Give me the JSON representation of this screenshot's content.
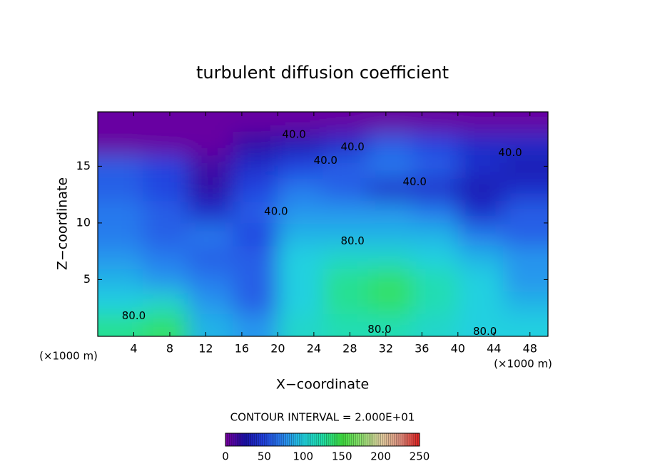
{
  "chart_data": {
    "type": "contour",
    "title": "turbulent diffusion coefficient",
    "xlabel": "X−coordinate",
    "ylabel": "Z−coordinate",
    "x_unit_label": "(×1000 m)",
    "x_unit_label_right": "(×1000 m)",
    "contour_interval_label": "CONTOUR INTERVAL = 2.000E+01",
    "xlim": [
      0,
      50
    ],
    "ylim": [
      0,
      19.8
    ],
    "xticks": [
      4,
      8,
      12,
      16,
      20,
      24,
      28,
      32,
      36,
      40,
      44,
      48
    ],
    "yticks": [
      5,
      10,
      15
    ],
    "grid_x": [
      2.5,
      7.5,
      12.5,
      17.5,
      22.5,
      27.5,
      32.5,
      37.5,
      42.5,
      47.5
    ],
    "grid_z": [
      1,
      3,
      5,
      7,
      9,
      11,
      13,
      15,
      17,
      19
    ],
    "values": [
      [
        130,
        140,
        90,
        80,
        110,
        120,
        120,
        110,
        100,
        100
      ],
      [
        100,
        110,
        80,
        60,
        100,
        130,
        140,
        120,
        100,
        90
      ],
      [
        90,
        80,
        70,
        60,
        100,
        130,
        140,
        120,
        100,
        80
      ],
      [
        80,
        70,
        60,
        60,
        100,
        110,
        110,
        100,
        90,
        80
      ],
      [
        70,
        60,
        70,
        50,
        90,
        90,
        90,
        90,
        70,
        60
      ],
      [
        70,
        60,
        40,
        60,
        80,
        80,
        80,
        70,
        40,
        60
      ],
      [
        60,
        50,
        20,
        50,
        70,
        60,
        40,
        40,
        30,
        40
      ],
      [
        60,
        50,
        15,
        40,
        50,
        60,
        70,
        60,
        40,
        30
      ],
      [
        5,
        5,
        5,
        20,
        30,
        40,
        60,
        50,
        40,
        40
      ],
      [
        5,
        5,
        5,
        5,
        5,
        5,
        5,
        5,
        5,
        5
      ]
    ],
    "contour_labels": [
      {
        "value": 40,
        "label": "40.0",
        "x": 21.8,
        "y": 17.8
      },
      {
        "value": 40,
        "label": "40.0",
        "x": 28.3,
        "y": 16.7
      },
      {
        "value": 40,
        "label": "40.0",
        "x": 25.3,
        "y": 15.5
      },
      {
        "value": 40,
        "label": "40.0",
        "x": 45.8,
        "y": 16.2
      },
      {
        "value": 40,
        "label": "40.0",
        "x": 35.2,
        "y": 13.6
      },
      {
        "value": 40,
        "label": "40.0",
        "x": 19.8,
        "y": 11.0
      },
      {
        "value": 80,
        "label": "80.0",
        "x": 28.3,
        "y": 8.4
      },
      {
        "value": 80,
        "label": "80.0",
        "x": 31.3,
        "y": 0.6
      },
      {
        "value": 80,
        "label": "80.0",
        "x": 43.0,
        "y": 0.4
      },
      {
        "value": 80,
        "label": "80.0",
        "x": 4.0,
        "y": 1.8
      }
    ],
    "clim": [
      0,
      250
    ],
    "colorbar_ticks": [
      0,
      50,
      100,
      150,
      200,
      250
    ],
    "colormap": [
      "#7a00a0",
      "#1a10a8",
      "#2244e0",
      "#2a88f0",
      "#20d0e0",
      "#20e0a8",
      "#40e040",
      "#90e070",
      "#e0d0a0",
      "#e09080",
      "#e02020"
    ]
  }
}
